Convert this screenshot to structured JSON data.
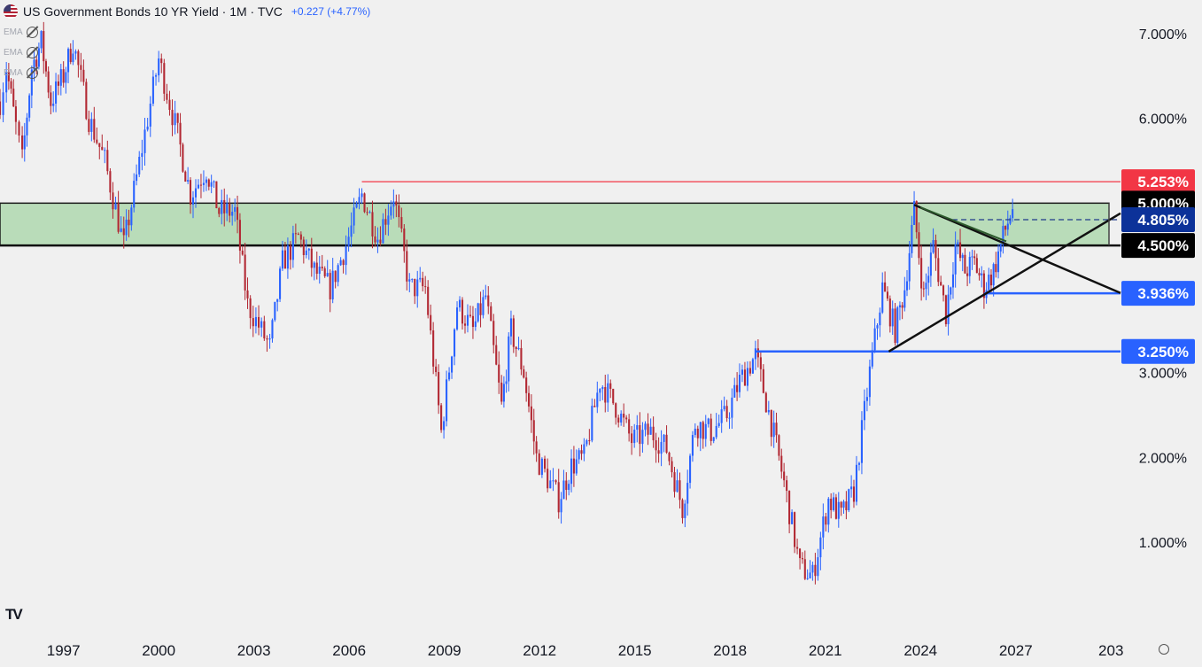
{
  "header": {
    "title": "US Government Bonds 10 YR Yield · 1M · TVC",
    "change": "+0.227 (+4.77%)"
  },
  "indicators": [
    {
      "label": "EMA",
      "icon": "eye-off-icon"
    },
    {
      "label": "EMA",
      "icon": "eye-off-icon"
    },
    {
      "label": "EMA",
      "icon": "eye-off-icon"
    }
  ],
  "colors": {
    "up": "#2962ff",
    "down": "#b22833",
    "zone_fill": "#b9dcb9",
    "resistance": "#f23645",
    "support": "#2962ff"
  },
  "chart_data": {
    "type": "candlestick",
    "x_ticks": [
      "1997",
      "2000",
      "2003",
      "2006",
      "2009",
      "2012",
      "2015",
      "2018",
      "2021",
      "2024",
      "2027",
      "203"
    ],
    "y_ticks": [
      "1.000%",
      "2.000%",
      "3.000%",
      "6.000%",
      "7.000%"
    ],
    "ylim": [
      0.3,
      7.3
    ],
    "xlim": [
      1995.0,
      2030.3
    ],
    "series_points": [
      [
        1995.0,
        6.2
      ],
      [
        1995.2,
        6.6
      ],
      [
        1995.5,
        5.9
      ],
      [
        1995.7,
        5.5
      ],
      [
        1996.0,
        6.6
      ],
      [
        1996.3,
        6.9
      ],
      [
        1996.6,
        6.2
      ],
      [
        1997.0,
        6.5
      ],
      [
        1997.3,
        6.9
      ],
      [
        1997.8,
        6.0
      ],
      [
        1998.3,
        5.5
      ],
      [
        1998.9,
        4.5
      ],
      [
        1999.3,
        5.3
      ],
      [
        2000.0,
        6.7
      ],
      [
        2000.6,
        5.8
      ],
      [
        2001.0,
        5.1
      ],
      [
        2001.5,
        5.4
      ],
      [
        2001.9,
        4.9
      ],
      [
        2002.4,
        4.9
      ],
      [
        2002.8,
        3.8
      ],
      [
        2003.5,
        3.3
      ],
      [
        2003.9,
        4.3
      ],
      [
        2004.4,
        4.6
      ],
      [
        2004.9,
        4.2
      ],
      [
        2005.4,
        4.0
      ],
      [
        2005.9,
        4.5
      ],
      [
        2006.4,
        5.1
      ],
      [
        2006.9,
        4.6
      ],
      [
        2007.4,
        5.1
      ],
      [
        2007.9,
        4.0
      ],
      [
        2008.4,
        4.0
      ],
      [
        2008.9,
        2.3
      ],
      [
        2009.4,
        3.8
      ],
      [
        2009.9,
        3.5
      ],
      [
        2010.3,
        3.9
      ],
      [
        2010.8,
        2.6
      ],
      [
        2011.1,
        3.5
      ],
      [
        2011.5,
        3.0
      ],
      [
        2011.9,
        2.0
      ],
      [
        2012.6,
        1.5
      ],
      [
        2013.0,
        1.9
      ],
      [
        2013.4,
        2.0
      ],
      [
        2013.9,
        2.9
      ],
      [
        2014.4,
        2.6
      ],
      [
        2014.9,
        2.2
      ],
      [
        2015.5,
        2.3
      ],
      [
        2016.0,
        2.1
      ],
      [
        2016.5,
        1.4
      ],
      [
        2016.9,
        2.4
      ],
      [
        2017.4,
        2.3
      ],
      [
        2017.9,
        2.5
      ],
      [
        2018.3,
        2.9
      ],
      [
        2018.8,
        3.2
      ],
      [
        2019.3,
        2.4
      ],
      [
        2019.7,
        1.7
      ],
      [
        2020.2,
        0.7
      ],
      [
        2020.6,
        0.6
      ],
      [
        2021.1,
        1.5
      ],
      [
        2021.5,
        1.3
      ],
      [
        2021.9,
        1.6
      ],
      [
        2022.4,
        3.0
      ],
      [
        2022.8,
        4.0
      ],
      [
        2023.2,
        3.5
      ],
      [
        2023.5,
        4.0
      ],
      [
        2023.8,
        4.9
      ],
      [
        2024.1,
        3.9
      ],
      [
        2024.4,
        4.5
      ],
      [
        2024.8,
        3.7
      ],
      [
        2025.1,
        4.5
      ],
      [
        2025.4,
        4.2
      ],
      [
        2025.7,
        4.3
      ],
      [
        2026.0,
        4.0
      ],
      [
        2026.3,
        4.2
      ],
      [
        2026.6,
        4.6
      ],
      [
        2026.9,
        4.95
      ]
    ],
    "zone": {
      "from": "4.500%",
      "to": "5.000%",
      "high": 5.0,
      "low": 4.5
    },
    "levels": [
      {
        "label": "5.253%",
        "value": 5.253,
        "style": "red"
      },
      {
        "label": "5.000%",
        "value": 5.0,
        "style": "black"
      },
      {
        "label": "4.805%",
        "value": 4.805,
        "style": "navy"
      },
      {
        "label": "4.500%",
        "value": 4.5,
        "style": "black"
      },
      {
        "label": "3.936%",
        "value": 3.936,
        "style": "blue"
      },
      {
        "label": "3.250%",
        "value": 3.25,
        "style": "blue"
      }
    ],
    "trendlines": [
      {
        "name": "descending",
        "x1": 2023.8,
        "y1": 4.98,
        "x2": 2030.3,
        "y2": 3.94
      },
      {
        "name": "ascending",
        "x1": 2023.0,
        "y1": 3.25,
        "x2": 2030.3,
        "y2": 4.88
      }
    ]
  }
}
